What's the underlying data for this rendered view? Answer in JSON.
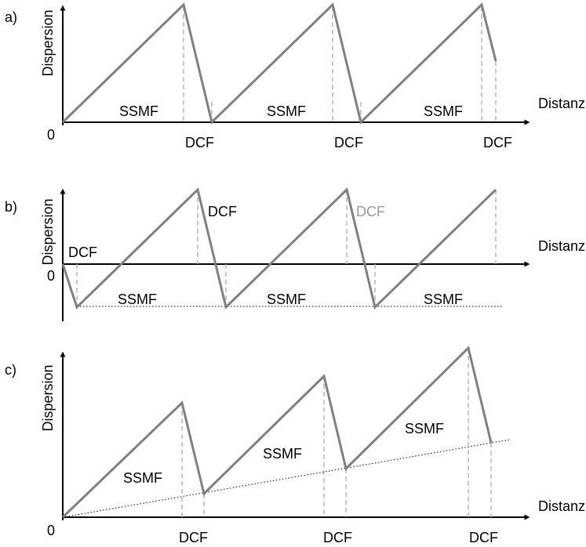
{
  "panels": [
    {
      "id": "a",
      "label": "a)",
      "y_axis_label": "Dispersion",
      "x_axis_label": "Distanz",
      "origin_label": "0",
      "fiber_labels": [
        "SSMF",
        "SSMF",
        "SSMF"
      ],
      "dcf_labels": [
        "DCF",
        "DCF",
        "DCF"
      ]
    },
    {
      "id": "b",
      "label": "b)",
      "y_axis_label": "Dispersion",
      "x_axis_label": "Distanz",
      "origin_label": "0",
      "fiber_labels": [
        "SSMF",
        "SSMF",
        "SSMF"
      ],
      "dcf_labels": [
        "DCF",
        "DCF",
        "DCF"
      ]
    },
    {
      "id": "c",
      "label": "c)",
      "y_axis_label": "Dispersion",
      "x_axis_label": "Distanz",
      "origin_label": "0",
      "fiber_labels": [
        "SSMF",
        "SSMF",
        "SSMF"
      ],
      "dcf_labels": [
        "DCF",
        "DCF",
        "DCF"
      ]
    }
  ],
  "colors": {
    "curve": "#808080",
    "axis": "#000000",
    "guide": "#b0b0b0",
    "muted_label": "#9a9a9a"
  }
}
